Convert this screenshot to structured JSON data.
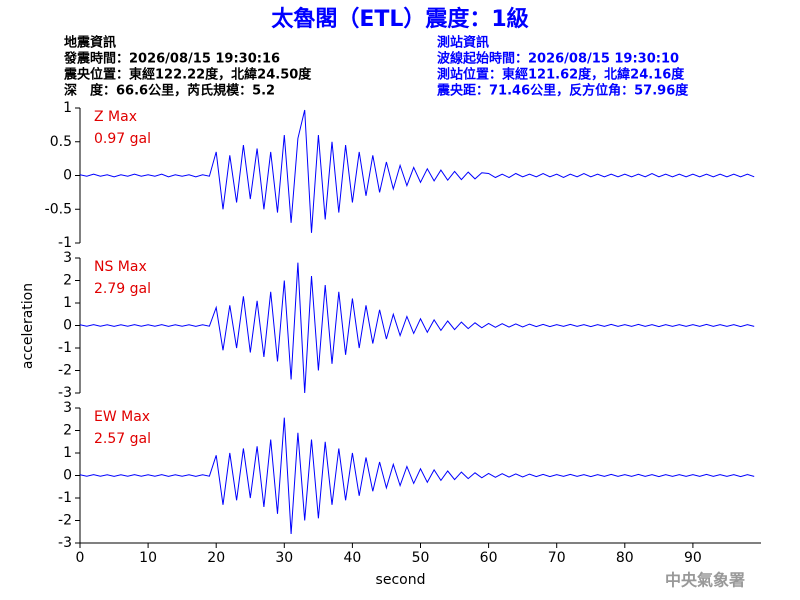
{
  "header": {
    "title": "太魯閣（ETL）震度：1級",
    "event_info": [
      "地震資訊",
      "發震時間：2026/08/15 19:30:16",
      "震央位置：東經122.22度，北緯24.50度",
      "深　度：66.6公里，芮氏規模：5.2"
    ],
    "station_info": [
      "測站資訊",
      "波線起始時間：2026/08/15 19:30:10",
      "測站位置：東經121.62度，北緯24.16度",
      "震央距：71.46公里，反方位角：57.96度"
    ],
    "ylabel": "acceleration",
    "credit": "中央氣象署"
  },
  "chart_data": [
    {
      "type": "line",
      "label": "Z Max",
      "max_label": "0.97 gal",
      "color": "#0000ff",
      "xlim": [
        0,
        100
      ],
      "ylim": [
        -1,
        1
      ],
      "yticks": [
        -1,
        -0.5,
        0,
        0.5,
        1
      ],
      "x": [
        0,
        1,
        2,
        3,
        4,
        5,
        6,
        7,
        8,
        9,
        10,
        11,
        12,
        13,
        14,
        15,
        16,
        17,
        18,
        19,
        20,
        21,
        22,
        23,
        24,
        25,
        26,
        27,
        28,
        29,
        30,
        31,
        32,
        33,
        34,
        35,
        36,
        37,
        38,
        39,
        40,
        41,
        42,
        43,
        44,
        45,
        46,
        47,
        48,
        49,
        50,
        51,
        52,
        53,
        54,
        55,
        56,
        57,
        58,
        59,
        60,
        61,
        62,
        63,
        64,
        65,
        66,
        67,
        68,
        69,
        70,
        71,
        72,
        73,
        74,
        75,
        76,
        77,
        78,
        79,
        80,
        81,
        82,
        83,
        84,
        85,
        86,
        87,
        88,
        89,
        90,
        91,
        92,
        93,
        94,
        95,
        96,
        97,
        98,
        99
      ],
      "values": [
        0.01,
        -0.01,
        0.02,
        -0.01,
        0.01,
        -0.02,
        0.01,
        -0.01,
        0.02,
        -0.01,
        0.01,
        -0.01,
        0.02,
        -0.02,
        0.01,
        -0.01,
        0.01,
        -0.02,
        0.01,
        -0.01,
        0.35,
        -0.5,
        0.3,
        -0.4,
        0.45,
        -0.35,
        0.4,
        -0.5,
        0.35,
        -0.55,
        0.6,
        -0.7,
        0.55,
        0.97,
        -0.85,
        0.6,
        -0.65,
        0.5,
        -0.55,
        0.45,
        -0.4,
        0.35,
        -0.3,
        0.3,
        -0.25,
        0.2,
        -0.2,
        0.15,
        -0.15,
        0.12,
        -0.1,
        0.1,
        -0.08,
        0.08,
        -0.07,
        0.06,
        -0.06,
        0.05,
        -0.05,
        0.04,
        0.03,
        -0.03,
        0.02,
        -0.03,
        0.03,
        -0.02,
        0.02,
        -0.02,
        0.03,
        -0.02,
        0.02,
        -0.03,
        0.02,
        -0.02,
        0.03,
        -0.02,
        0.02,
        -0.02,
        0.02,
        -0.02,
        0.02,
        -0.02,
        0.02,
        -0.02,
        0.03,
        -0.02,
        0.02,
        -0.02,
        0.02,
        -0.02,
        0.02,
        -0.02,
        0.02,
        -0.02,
        0.02,
        -0.02,
        0.02,
        -0.02,
        0.02,
        -0.02
      ]
    },
    {
      "type": "line",
      "label": "NS Max",
      "max_label": "2.79 gal",
      "color": "#0000ff",
      "xlim": [
        0,
        100
      ],
      "ylim": [
        -3,
        3
      ],
      "yticks": [
        -3,
        -2,
        -1,
        0,
        1,
        2,
        3
      ],
      "x": [
        0,
        1,
        2,
        3,
        4,
        5,
        6,
        7,
        8,
        9,
        10,
        11,
        12,
        13,
        14,
        15,
        16,
        17,
        18,
        19,
        20,
        21,
        22,
        23,
        24,
        25,
        26,
        27,
        28,
        29,
        30,
        31,
        32,
        33,
        34,
        35,
        36,
        37,
        38,
        39,
        40,
        41,
        42,
        43,
        44,
        45,
        46,
        47,
        48,
        49,
        50,
        51,
        52,
        53,
        54,
        55,
        56,
        57,
        58,
        59,
        60,
        61,
        62,
        63,
        64,
        65,
        66,
        67,
        68,
        69,
        70,
        71,
        72,
        73,
        74,
        75,
        76,
        77,
        78,
        79,
        80,
        81,
        82,
        83,
        84,
        85,
        86,
        87,
        88,
        89,
        90,
        91,
        92,
        93,
        94,
        95,
        96,
        97,
        98,
        99
      ],
      "values": [
        0.03,
        -0.03,
        0.04,
        -0.03,
        0.03,
        -0.04,
        0.03,
        -0.03,
        0.04,
        -0.03,
        0.03,
        -0.03,
        0.04,
        -0.04,
        0.03,
        -0.03,
        0.03,
        -0.04,
        0.03,
        -0.03,
        0.8,
        -1.1,
        0.9,
        -1.0,
        1.3,
        -1.2,
        1.1,
        -1.4,
        1.5,
        -1.6,
        2.0,
        -2.4,
        2.79,
        -3.0,
        2.2,
        -2.0,
        1.8,
        -1.7,
        1.5,
        -1.3,
        1.2,
        -1.0,
        0.9,
        -0.8,
        0.7,
        -0.6,
        0.5,
        -0.45,
        0.4,
        -0.35,
        0.3,
        -0.3,
        0.25,
        -0.22,
        0.2,
        -0.18,
        0.15,
        -0.14,
        0.12,
        -0.1,
        0.09,
        -0.08,
        0.08,
        -0.07,
        0.07,
        -0.06,
        0.06,
        -0.05,
        0.05,
        -0.05,
        0.04,
        -0.04,
        0.05,
        -0.04,
        0.04,
        -0.05,
        0.04,
        -0.04,
        0.05,
        -0.04,
        0.04,
        -0.04,
        0.05,
        -0.04,
        0.04,
        -0.05,
        0.04,
        -0.04,
        0.04,
        -0.04,
        0.04,
        -0.04,
        0.05,
        -0.04,
        0.04,
        -0.04,
        0.04,
        -0.05,
        0.04,
        -0.04
      ]
    },
    {
      "type": "line",
      "label": "EW Max",
      "max_label": "2.57 gal",
      "color": "#0000ff",
      "xlim": [
        0,
        100
      ],
      "ylim": [
        -3,
        3
      ],
      "yticks": [
        -3,
        -2,
        -1,
        0,
        1,
        2,
        3
      ],
      "xticks": [
        0,
        10,
        20,
        30,
        40,
        50,
        60,
        70,
        80,
        90
      ],
      "xlabel": "second",
      "x": [
        0,
        1,
        2,
        3,
        4,
        5,
        6,
        7,
        8,
        9,
        10,
        11,
        12,
        13,
        14,
        15,
        16,
        17,
        18,
        19,
        20,
        21,
        22,
        23,
        24,
        25,
        26,
        27,
        28,
        29,
        30,
        31,
        32,
        33,
        34,
        35,
        36,
        37,
        38,
        39,
        40,
        41,
        42,
        43,
        44,
        45,
        46,
        47,
        48,
        49,
        50,
        51,
        52,
        53,
        54,
        55,
        56,
        57,
        58,
        59,
        60,
        61,
        62,
        63,
        64,
        65,
        66,
        67,
        68,
        69,
        70,
        71,
        72,
        73,
        74,
        75,
        76,
        77,
        78,
        79,
        80,
        81,
        82,
        83,
        84,
        85,
        86,
        87,
        88,
        89,
        90,
        91,
        92,
        93,
        94,
        95,
        96,
        97,
        98,
        99
      ],
      "values": [
        0.03,
        -0.03,
        0.04,
        -0.03,
        0.03,
        -0.04,
        0.03,
        -0.03,
        0.04,
        -0.03,
        0.03,
        -0.03,
        0.04,
        -0.04,
        0.03,
        -0.03,
        0.03,
        -0.04,
        0.03,
        -0.03,
        0.9,
        -1.3,
        1.0,
        -1.1,
        1.2,
        -1.0,
        1.3,
        -1.4,
        1.6,
        -1.7,
        2.57,
        -2.6,
        1.9,
        -2.0,
        1.6,
        -1.9,
        1.5,
        -1.3,
        1.2,
        -1.1,
        1.0,
        -0.9,
        0.8,
        -0.7,
        0.6,
        -0.55,
        0.5,
        -0.45,
        0.4,
        -0.35,
        0.3,
        -0.3,
        0.25,
        -0.22,
        0.2,
        -0.18,
        0.15,
        -0.14,
        0.12,
        -0.1,
        0.09,
        -0.08,
        0.08,
        -0.07,
        0.07,
        -0.06,
        0.06,
        -0.05,
        0.05,
        -0.05,
        0.04,
        -0.04,
        0.05,
        -0.04,
        0.04,
        -0.05,
        0.04,
        -0.04,
        0.05,
        -0.04,
        0.04,
        -0.04,
        0.05,
        -0.04,
        0.04,
        -0.05,
        0.04,
        -0.04,
        0.04,
        -0.04,
        0.04,
        -0.04,
        0.05,
        -0.04,
        0.04,
        -0.04,
        0.04,
        -0.05,
        0.04,
        -0.04
      ]
    }
  ]
}
